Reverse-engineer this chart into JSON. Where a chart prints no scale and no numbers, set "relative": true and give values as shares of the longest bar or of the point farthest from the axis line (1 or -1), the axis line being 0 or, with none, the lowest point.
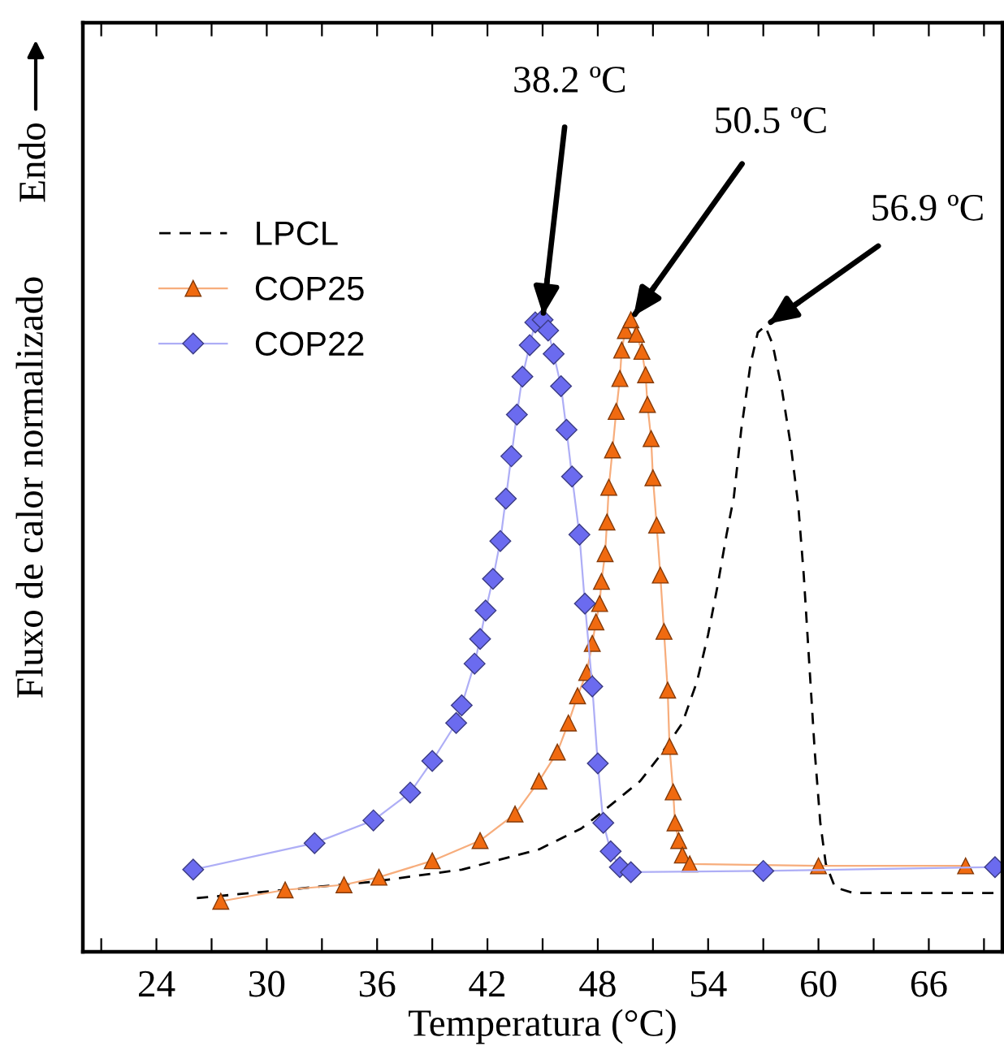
{
  "chart_data": {
    "type": "line",
    "relative": true,
    "xlabel": "Temperatura (°C)",
    "ylabel": "Fluxo de calor normalizado",
    "xlim": [
      20,
      70
    ],
    "xticks": [
      {
        "value": 21,
        "label": null
      },
      24,
      {
        "value": 27,
        "label": null
      },
      30,
      {
        "value": 33,
        "label": null
      },
      36,
      {
        "value": 39,
        "label": null
      },
      42,
      {
        "value": 45,
        "label": null
      },
      48,
      {
        "value": 51,
        "label": null
      },
      54,
      {
        "value": 57,
        "label": null
      },
      60,
      {
        "value": 63,
        "label": null
      },
      66,
      {
        "value": 69,
        "label": null
      }
    ],
    "grid": false,
    "legend": "top left",
    "annotations": [
      "Endo",
      {
        "text": "38.2 ºC",
        "x": 45.0,
        "y": 1.0
      },
      {
        "text": "50.5 ºC",
        "x": 49.8,
        "y": 1.0
      },
      {
        "text": "56.9 ºC",
        "x": 57.1,
        "y": 0.99
      }
    ],
    "series": [
      {
        "name": "LPCL",
        "color": "#000000",
        "marker": "none",
        "line_style": "dashed",
        "x": [
          26.2,
          35.8,
          40.6,
          44.8,
          47.1,
          48.7,
          50.3,
          51.4,
          52.6,
          53.4,
          54.0,
          54.5,
          55.0,
          55.4,
          55.8,
          56.3,
          56.7,
          57.1,
          57.5,
          58.0,
          58.5,
          58.9,
          59.2,
          59.5,
          59.8,
          60.1,
          60.4,
          60.9,
          61.9,
          69.8
        ],
        "values": [
          0.085,
          0.111,
          0.13,
          0.162,
          0.195,
          0.232,
          0.27,
          0.311,
          0.362,
          0.428,
          0.502,
          0.577,
          0.66,
          0.72,
          0.826,
          0.929,
          0.98,
          0.99,
          0.962,
          0.892,
          0.8,
          0.707,
          0.596,
          0.456,
          0.316,
          0.204,
          0.139,
          0.102,
          0.093,
          0.093
        ]
      },
      {
        "name": "COP25",
        "color": "#f06a10",
        "marker": "triangle",
        "line_style": "solid",
        "x": [
          27.5,
          31.0,
          34.2,
          36.1,
          39.0,
          41.6,
          43.5,
          44.8,
          45.8,
          46.4,
          46.9,
          47.4,
          47.7,
          47.9,
          48.1,
          48.2,
          48.4,
          48.5,
          48.6,
          48.8,
          49.0,
          49.2,
          49.3,
          49.5,
          49.8,
          50.1,
          50.4,
          50.6,
          50.7,
          50.9,
          51.0,
          51.2,
          51.4,
          51.6,
          51.8,
          51.9,
          52.1,
          52.2,
          52.4,
          52.6,
          53.0,
          60.0,
          68.0
        ],
        "values": [
          0.08,
          0.098,
          0.106,
          0.118,
          0.144,
          0.176,
          0.218,
          0.27,
          0.316,
          0.362,
          0.405,
          0.442,
          0.488,
          0.522,
          0.551,
          0.586,
          0.63,
          0.68,
          0.735,
          0.794,
          0.855,
          0.907,
          0.952,
          0.983,
          1.0,
          0.977,
          0.95,
          0.913,
          0.866,
          0.812,
          0.75,
          0.675,
          0.596,
          0.507,
          0.414,
          0.325,
          0.253,
          0.204,
          0.176,
          0.153,
          0.139,
          0.136,
          0.136
        ]
      },
      {
        "name": "COP22",
        "color": "#6b6bef",
        "marker": "diamond",
        "line_style": "solid",
        "x": [
          26.0,
          32.6,
          35.8,
          37.8,
          39.0,
          40.3,
          40.6,
          41.3,
          41.6,
          41.9,
          42.3,
          42.7,
          43.0,
          43.3,
          43.6,
          43.9,
          44.3,
          44.6,
          45.0,
          45.3,
          45.6,
          46.0,
          46.3,
          46.6,
          47.0,
          47.3,
          47.7,
          48.0,
          48.3,
          48.7,
          49.2,
          49.8,
          57.0,
          69.6
        ],
        "values": [
          0.13,
          0.172,
          0.208,
          0.252,
          0.302,
          0.362,
          0.39,
          0.456,
          0.495,
          0.54,
          0.59,
          0.65,
          0.717,
          0.784,
          0.85,
          0.91,
          0.96,
          0.996,
          1.0,
          0.983,
          0.946,
          0.895,
          0.826,
          0.752,
          0.66,
          0.551,
          0.42,
          0.298,
          0.204,
          0.159,
          0.134,
          0.126,
          0.128,
          0.134
        ]
      }
    ]
  }
}
